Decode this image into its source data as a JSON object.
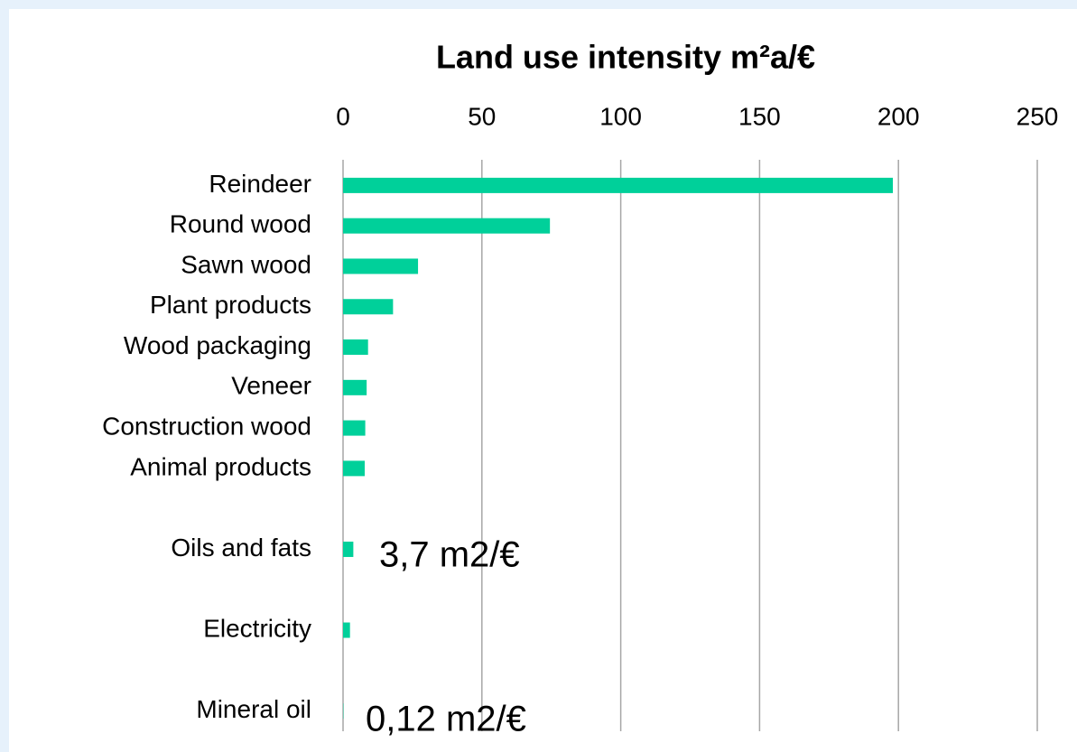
{
  "chart_data": {
    "type": "barh",
    "title": "Land use intensity m²a/€",
    "categories": [
      "Reindeer",
      "Round wood",
      "Sawn wood",
      "Plant products",
      "Wood packaging",
      "Veneer",
      "Construction wood",
      "Animal products",
      null,
      "Oils and fats",
      null,
      "Electricity",
      null,
      "Mineral oil"
    ],
    "values": [
      198,
      74.5,
      27,
      18,
      9,
      8.5,
      8,
      7.8,
      null,
      3.7,
      null,
      2.5,
      null,
      0.12
    ],
    "color": "#00d09a",
    "xlim": [
      0,
      250
    ],
    "xticks": [
      0,
      50,
      100,
      150,
      200,
      250
    ],
    "grid": true,
    "annotations": [
      "3,7 m2/€",
      "0,12 m2/€"
    ]
  }
}
